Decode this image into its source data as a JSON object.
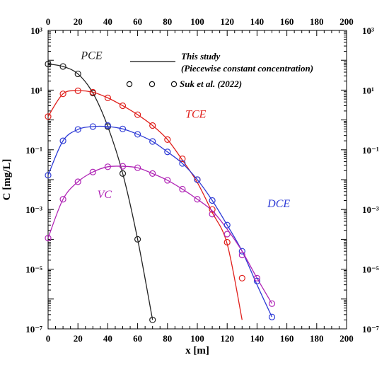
{
  "chart_data": {
    "type": "line",
    "xlabel": "x [m]",
    "ylabel": "C [mg/L]",
    "xlim": [
      0,
      200
    ],
    "ylim": [
      1e-07,
      1000
    ],
    "yscale": "log",
    "x_ticks": [
      "0",
      "20",
      "40",
      "60",
      "80",
      "100",
      "120",
      "140",
      "160",
      "180",
      "200"
    ],
    "y_ticks_left": [
      "10⁻⁷",
      "10⁻⁵",
      "10⁻³",
      "10⁻¹",
      "10¹",
      "10³"
    ],
    "y_ticks_right": [
      "10⁻⁷",
      "10⁻⁵",
      "10⁻³",
      "10⁻¹",
      "10¹",
      "10³"
    ],
    "legend": {
      "line_label": "This study",
      "line_sublabel": "(Piecewise constant concentration)",
      "marker_label": "Suk et al. (2022)"
    },
    "series": [
      {
        "name": "PCE",
        "color": "#222222",
        "label_at": [
          22,
          110
        ],
        "line_x": [
          0,
          10,
          20,
          30,
          40,
          50,
          60,
          70
        ],
        "line_y": [
          75,
          62,
          35,
          8,
          0.6,
          0.016,
          0.0001,
          2e-07
        ],
        "points_x": [
          0,
          10,
          20,
          30,
          40,
          50,
          60,
          70
        ],
        "points_y": [
          75,
          62,
          35,
          8,
          0.6,
          0.016,
          0.0001,
          2e-07
        ]
      },
      {
        "name": "TCE",
        "color": "#e0201c",
        "label_at": [
          92,
          1.2
        ],
        "line_x": [
          0,
          10,
          20,
          30,
          40,
          50,
          60,
          70,
          80,
          90,
          100,
          110,
          120,
          130
        ],
        "line_y": [
          1.3,
          7.5,
          9.5,
          8.5,
          5.5,
          3.0,
          1.5,
          0.65,
          0.22,
          0.045,
          0.008,
          0.0008,
          7e-05,
          2e-07
        ],
        "points_x": [
          0,
          10,
          20,
          30,
          40,
          50,
          60,
          70,
          80,
          90,
          100,
          110,
          120,
          130
        ],
        "points_y": [
          1.3,
          7.5,
          9.5,
          8.5,
          5.5,
          3.0,
          1.5,
          0.65,
          0.22,
          0.05,
          0.01,
          0.001,
          8e-05,
          5e-06
        ]
      },
      {
        "name": "DCE",
        "color": "#2e3bd6",
        "label_at": [
          147,
          0.0012
        ],
        "line_x": [
          0,
          10,
          20,
          30,
          40,
          50,
          60,
          70,
          80,
          90,
          100,
          110,
          120,
          130,
          140,
          150
        ],
        "line_y": [
          0.014,
          0.2,
          0.48,
          0.6,
          0.6,
          0.5,
          0.33,
          0.19,
          0.085,
          0.035,
          0.01,
          0.002,
          0.0003,
          4e-05,
          3e-06,
          2.5e-07
        ],
        "points_x": [
          0,
          10,
          20,
          30,
          40,
          50,
          60,
          70,
          80,
          90,
          100,
          110,
          120,
          130,
          140,
          150
        ],
        "points_y": [
          0.014,
          0.2,
          0.48,
          0.6,
          0.65,
          0.5,
          0.33,
          0.19,
          0.085,
          0.035,
          0.01,
          0.002,
          0.0003,
          4e-05,
          4e-06,
          2.5e-07
        ]
      },
      {
        "name": "VC",
        "color": "#b026b6",
        "label_at": [
          33,
          0.0024
        ],
        "line_x": [
          0,
          10,
          20,
          30,
          40,
          50,
          60,
          70,
          80,
          90,
          100,
          110,
          120,
          130,
          140,
          150
        ],
        "line_y": [
          0.00011,
          0.0022,
          0.0085,
          0.018,
          0.027,
          0.028,
          0.025,
          0.016,
          0.0095,
          0.0048,
          0.0022,
          0.0009,
          0.00022,
          4e-05,
          5e-06,
          7e-07
        ],
        "points_x": [
          0,
          10,
          20,
          30,
          40,
          50,
          60,
          70,
          80,
          90,
          100,
          110,
          120,
          130,
          140,
          150
        ],
        "points_y": [
          0.00011,
          0.0022,
          0.0085,
          0.018,
          0.027,
          0.028,
          0.025,
          0.016,
          0.0095,
          0.0048,
          0.0022,
          0.0007,
          0.00015,
          3e-05,
          5e-06,
          7e-07
        ]
      }
    ]
  }
}
